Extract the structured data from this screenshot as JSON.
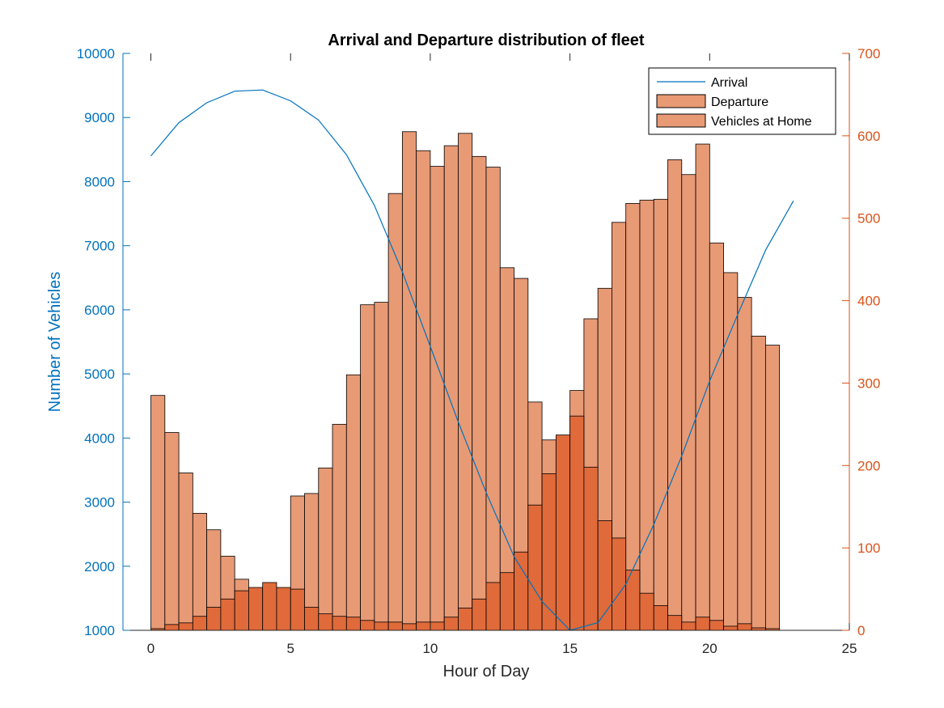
{
  "chart_data": {
    "type": "bar",
    "title": "Arrival and Departure distribution of fleet",
    "xlabel": "Hour of Day",
    "ylabel_left": "Number of Vehicles",
    "ylabel_right": "",
    "xlim": [
      -1,
      25
    ],
    "ylim_left": [
      1000,
      10000
    ],
    "ylim_right": [
      0,
      700
    ],
    "x_ticks": [
      0,
      5,
      10,
      15,
      20,
      25
    ],
    "y_left_ticks": [
      1000,
      2000,
      3000,
      4000,
      5000,
      6000,
      7000,
      8000,
      9000,
      10000
    ],
    "y_right_ticks": [
      0,
      100,
      200,
      300,
      400,
      500,
      600,
      700
    ],
    "bin_edges_start": 0,
    "bin_width": 0.5,
    "legend_position": "top-right",
    "colors": {
      "left_axis": "#0072BD",
      "right_axis": "#D95319",
      "arrival_line": "#0072BD",
      "bar_light": "#E89A75",
      "bar_dark": "#E06A3A",
      "bar_edge": "#000000"
    },
    "series": [
      {
        "name": "Arrival",
        "type": "line",
        "axis": "left",
        "x": [
          0,
          1,
          2,
          3,
          4,
          5,
          6,
          7,
          8,
          9,
          10,
          11,
          12,
          13,
          14,
          15,
          16,
          17,
          18,
          19,
          20,
          21,
          22,
          23
        ],
        "values": [
          8400,
          8920,
          9230,
          9410,
          9430,
          9260,
          8960,
          8420,
          7630,
          6590,
          5430,
          4250,
          3150,
          2150,
          1450,
          1000,
          1120,
          1720,
          2650,
          3720,
          4890,
          5920,
          6930,
          7700
        ]
      },
      {
        "name": "Departure",
        "type": "histogram",
        "axis": "right",
        "values": [
          285,
          240,
          191,
          142,
          122,
          90,
          62,
          50,
          30,
          33,
          163,
          166,
          197,
          250,
          310,
          395,
          398,
          530,
          605,
          582,
          563,
          588,
          603,
          575,
          562,
          440,
          427,
          277,
          231,
          167,
          291,
          378,
          415,
          495,
          518,
          522,
          523,
          571,
          553,
          590,
          470,
          434,
          404,
          357,
          346
        ]
      },
      {
        "name": "Vehicles at Home",
        "type": "histogram",
        "axis": "right",
        "values": [
          2,
          7,
          9,
          17,
          28,
          38,
          48,
          52,
          58,
          52,
          50,
          28,
          20,
          17,
          16,
          12,
          10,
          10,
          8,
          10,
          10,
          16,
          27,
          38,
          58,
          70,
          95,
          152,
          190,
          237,
          260,
          198,
          133,
          112,
          73,
          45,
          30,
          18,
          10,
          16,
          12,
          5,
          8,
          3,
          2
        ]
      }
    ]
  }
}
